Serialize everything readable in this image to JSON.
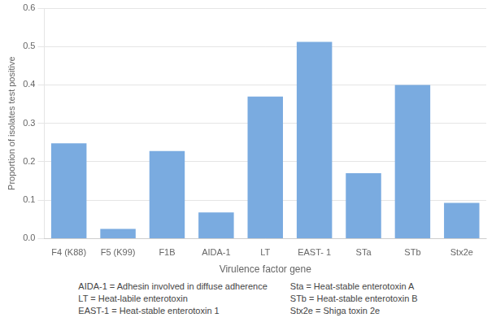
{
  "chart_data": {
    "type": "bar",
    "categories": [
      "F4 (K88)",
      "F5 (K99)",
      "F1B",
      "AIDA-1",
      "LT",
      "EAST- 1",
      "STa",
      "STb",
      "Stx2e"
    ],
    "values": [
      0.248,
      0.025,
      0.228,
      0.068,
      0.37,
      0.512,
      0.17,
      0.4,
      0.093
    ],
    "color": "#7aabe0",
    "xlabel": "Virulence factor gene",
    "ylabel": "Proportion of isolates test positive",
    "ylim": [
      0,
      0.6
    ],
    "yticks": [
      {
        "value": 0,
        "label": "0.0"
      },
      0.1,
      0.2,
      0.3,
      0.4,
      0.5,
      0.6
    ],
    "grid": true,
    "annotations": [
      "AIDA-1 = Adhesin involved in diffuse adherence",
      "LT = Heat-labile enterotoxin",
      "EAST-1 = Heat-stable enterotoxin 1",
      "Sta = Heat-stable enterotoxin A",
      "STb = Heat-stable enterotoxin B",
      "Stx2e = Shiga toxin 2e"
    ]
  }
}
